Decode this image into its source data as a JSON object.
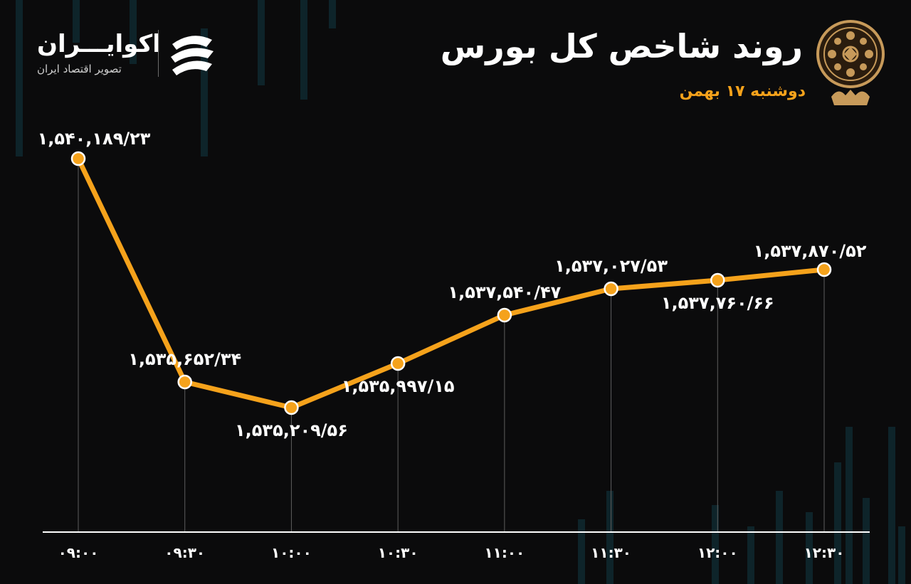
{
  "header": {
    "title": "روند شاخص کل بورس",
    "subtitle": "دوشنبه ۱۷ بهمن"
  },
  "brand": {
    "name": "اکوایـــران",
    "tagline": "تصویر اقتصاد ایران"
  },
  "colors": {
    "background": "#0b0b0c",
    "line": "#f5a21b",
    "marker_fill": "#f5a21b",
    "marker_stroke": "#ffffff",
    "labels": "#ffffff",
    "axis": "#ffffff",
    "grid": "#5e5e5e",
    "decor_bars": "#123a44"
  },
  "icons": {
    "brand_logo": "ekoiran-logo-icon",
    "seal": "tehran-stock-exchange-seal-icon"
  },
  "chart_data": {
    "type": "line",
    "title": "روند شاخص کل بورس",
    "x": [
      "۰۹:۰۰",
      "۰۹:۳۰",
      "۱۰:۰۰",
      "۱۰:۳۰",
      "۱۱:۰۰",
      "۱۱:۳۰",
      "۱۲:۰۰",
      "۱۲:۳۰"
    ],
    "values": [
      1540189.23,
      1535652.34,
      1535209.56,
      1535997.15,
      1537540.47,
      1537027.53,
      1537760.66,
      1537870.52
    ],
    "data_labels": [
      "۱,۵۴۰,۱۸۹/۲۳",
      "۱,۵۳۵,۶۵۲/۳۴",
      "۱,۵۳۵,۲۰۹/۵۶",
      "۱,۵۳۵,۹۹۷/۱۵",
      "۱,۵۳۷,۵۴۰/۴۷",
      "۱,۵۳۷,۰۲۷/۵۳",
      "۱,۵۳۷,۷۶۰/۶۶",
      "۱,۵۳۷,۸۷۰/۵۲"
    ],
    "label_positions": [
      "above",
      "above",
      "below",
      "below",
      "above",
      "above",
      "below",
      "above"
    ],
    "xlabel": "",
    "ylabel": "",
    "grid": "vertical-drop-lines",
    "legend": "none"
  }
}
